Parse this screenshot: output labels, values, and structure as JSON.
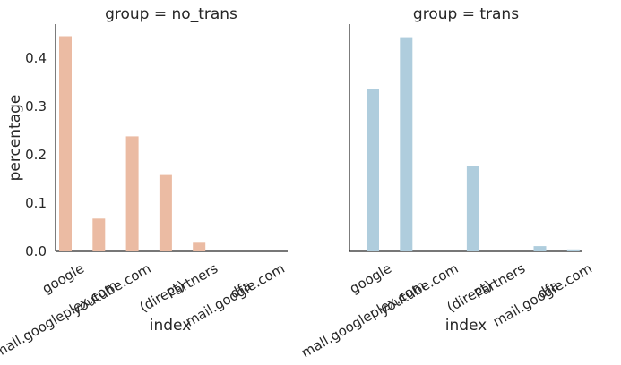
{
  "chart_data": {
    "type": "bar",
    "categories": [
      "google",
      "mall.googleplex.com",
      "youtube.com",
      "(direct)",
      "Partners",
      "dfa",
      "mail.google.com"
    ],
    "ylabel": "percentage",
    "ylim": [
      0,
      0.47
    ],
    "yticks": [
      "0.0",
      "0.1",
      "0.2",
      "0.3",
      "0.4"
    ],
    "grid": false,
    "legend": "none",
    "panels": [
      {
        "title": "group = no_trans",
        "xlabel": "index",
        "color": "#EBBBA3",
        "values": [
          0.445,
          0.068,
          0.238,
          0.158,
          0.018,
          0.0,
          0.0
        ]
      },
      {
        "title": "group = trans",
        "xlabel": "index",
        "color": "#AFCDDD",
        "values": [
          0.336,
          0.443,
          0.0,
          0.176,
          0.0,
          0.011,
          0.004
        ]
      }
    ]
  }
}
